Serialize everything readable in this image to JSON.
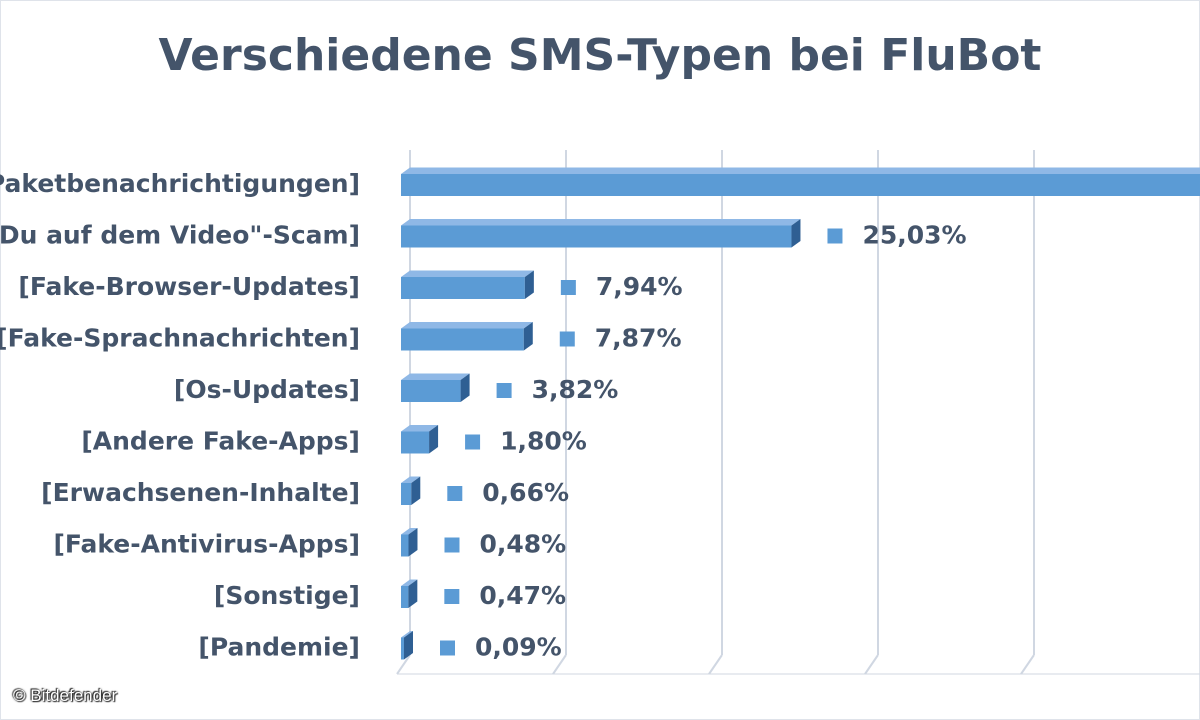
{
  "credit": "© Bitdefender",
  "colors": {
    "bar_front": "#5b9bd5",
    "bar_top": "#8fb8e6",
    "bar_side": "#2f5f93",
    "text": "#44546a",
    "grid": "#d0d7e2"
  },
  "chart_data": {
    "type": "bar",
    "orientation": "horizontal",
    "style": "3d",
    "title": "Verschiedene SMS-Typen bei FluBot",
    "xlim": [
      0,
      50
    ],
    "grid": true,
    "categories": [
      "[Paketbenachrichtigungen]",
      "[\"Bist Du auf dem Video\"-Scam]",
      "[Fake-Browser-Updates]",
      "[Fake-Sprachnachrichten]",
      "[Os-Updates]",
      "[Andere Fake-Apps]",
      "[Erwachsenen-Inhalte]",
      "[Fake-Antivirus-Apps]",
      "[Sonstige]",
      "[Pandemie]"
    ],
    "values": [
      51.84,
      25.03,
      7.94,
      7.87,
      3.82,
      1.8,
      0.66,
      0.48,
      0.47,
      0.09
    ],
    "value_labels": [
      "",
      "25,03%",
      "7,94%",
      "7,87%",
      "3,82%",
      "1,80%",
      "0,66%",
      "0,48%",
      "0,47%",
      "0,09%"
    ]
  }
}
